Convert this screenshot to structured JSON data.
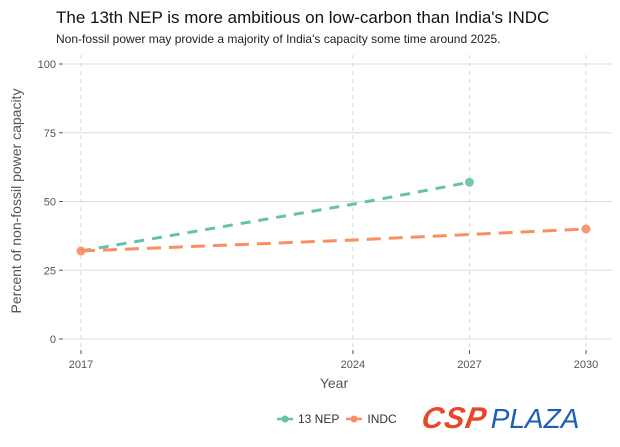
{
  "chart_data": {
    "type": "line",
    "title": "The 13th NEP is more ambitious on low-carbon than India's INDC",
    "subtitle": "Non-fossil power may provide a majority of India's capacity some time around 2025.",
    "xlabel": "Year",
    "ylabel": "Percent of non-fossil power capacity",
    "xlim": [
      2017,
      2030
    ],
    "ylim": [
      0,
      100
    ],
    "x_ticks": [
      2017,
      2024,
      2027,
      2030
    ],
    "y_ticks": [
      0,
      25,
      50,
      75,
      100
    ],
    "grid": true,
    "legend_position": "bottom",
    "series": [
      {
        "name": "13 NEP",
        "color": "#66c2a5",
        "line_style": "dashed",
        "x": [
          2017,
          2024,
          2027
        ],
        "y": [
          32,
          49,
          57
        ],
        "endpoint_markers": [
          2027
        ]
      },
      {
        "name": "INDC",
        "color": "#fc8d62",
        "line_style": "dashed",
        "x": [
          2017,
          2024,
          2027,
          2030
        ],
        "y": [
          32,
          36,
          38,
          40
        ],
        "endpoint_markers": [
          2017,
          2030
        ]
      }
    ]
  },
  "legend": {
    "items": [
      {
        "label": "13 NEP",
        "color": "#66c2a5"
      },
      {
        "label": "INDC",
        "color": "#fc8d62"
      }
    ]
  },
  "logo": {
    "part1": "CSP",
    "part2": "PLAZA",
    "color1": "#e8472a",
    "color2": "#1a5fb4"
  }
}
